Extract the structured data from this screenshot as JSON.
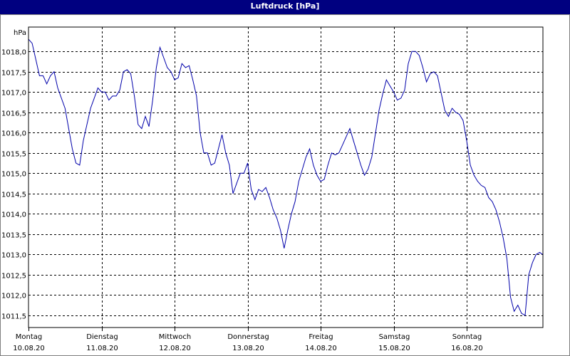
{
  "window": {
    "title": "Luftdruck [hPa]"
  },
  "chart_data": {
    "type": "line",
    "title": "Luftdruck [hPa]",
    "ylabel": "hPa",
    "ylim": [
      1011.2,
      1018.6
    ],
    "yticks": [
      "1018,0",
      "1017,5",
      "1017,0",
      "1016,5",
      "1016,0",
      "1015,5",
      "1015,0",
      "1014,5",
      "1014,0",
      "1013,5",
      "1013,0",
      "1012,5",
      "1012,0",
      "1011,5"
    ],
    "ytick_values": [
      1018.0,
      1017.5,
      1017.0,
      1016.5,
      1016.0,
      1015.5,
      1015.0,
      1014.5,
      1014.0,
      1013.5,
      1013.0,
      1012.5,
      1012.0,
      1011.5
    ],
    "xlim": [
      0,
      7.04
    ],
    "days": [
      {
        "day": "Montag",
        "date": "10.08.20"
      },
      {
        "day": "Dienstag",
        "date": "11.08.20"
      },
      {
        "day": "Mittwoch",
        "date": "12.08.20"
      },
      {
        "day": "Donnerstag",
        "date": "13.08.20"
      },
      {
        "day": "Freitag",
        "date": "14.08.20"
      },
      {
        "day": "Samstag",
        "date": "15.08.20"
      },
      {
        "day": "Sonntag",
        "date": "16.08.20"
      }
    ],
    "grid": true,
    "color": "#0000aa",
    "series": [
      {
        "x": [
          0.0,
          0.05,
          0.1,
          0.15,
          0.2,
          0.25,
          0.3,
          0.35,
          0.4,
          0.5,
          0.55,
          0.6,
          0.65,
          0.7,
          0.75,
          0.85,
          0.9,
          0.95,
          1.0,
          1.05,
          1.1,
          1.15,
          1.2,
          1.25,
          1.3,
          1.35,
          1.4,
          1.45,
          1.5,
          1.55,
          1.6,
          1.65,
          1.7,
          1.75,
          1.8,
          1.9,
          1.95,
          2.0,
          2.05,
          2.1,
          2.15,
          2.2,
          2.25,
          2.3,
          2.35,
          2.4,
          2.45,
          2.5,
          2.55,
          2.6,
          2.65,
          2.7,
          2.75,
          2.8,
          2.9,
          2.95,
          3.0,
          3.05,
          3.1,
          3.15,
          3.2,
          3.25,
          3.3,
          3.35,
          3.4,
          3.45,
          3.5,
          3.55,
          3.6,
          3.65,
          3.7,
          3.8,
          3.85,
          3.9,
          3.95,
          4.0,
          4.05,
          4.1,
          4.15,
          4.2,
          4.25,
          4.3,
          4.4,
          4.45,
          4.5,
          4.55,
          4.6,
          4.65,
          4.7,
          4.8,
          4.85,
          4.9,
          4.95,
          5.0,
          5.05,
          5.1,
          5.15,
          5.2,
          5.25,
          5.3,
          5.35,
          5.4,
          5.45,
          5.5,
          5.55,
          5.6,
          5.7,
          5.75,
          5.8,
          5.85,
          5.9,
          5.95,
          6.0,
          6.05,
          6.1,
          6.15,
          6.2,
          6.25,
          6.3,
          6.35,
          6.4,
          6.45,
          6.5,
          6.55,
          6.6,
          6.65,
          6.7,
          6.75,
          6.8,
          6.85,
          6.9,
          6.95,
          7.0,
          7.04
        ],
        "y": [
          1018.3,
          1018.2,
          1017.8,
          1017.4,
          1017.4,
          1017.2,
          1017.4,
          1017.5,
          1017.1,
          1016.6,
          1016.1,
          1015.6,
          1015.25,
          1015.2,
          1015.8,
          1016.6,
          1016.85,
          1017.1,
          1017.0,
          1017.0,
          1016.8,
          1016.9,
          1016.9,
          1017.05,
          1017.5,
          1017.55,
          1017.45,
          1016.9,
          1016.2,
          1016.1,
          1016.4,
          1016.15,
          1016.8,
          1017.6,
          1018.1,
          1017.6,
          1017.5,
          1017.3,
          1017.35,
          1017.7,
          1017.6,
          1017.65,
          1017.3,
          1016.9,
          1016.0,
          1015.5,
          1015.5,
          1015.2,
          1015.25,
          1015.6,
          1015.95,
          1015.5,
          1015.2,
          1014.5,
          1015.0,
          1015.0,
          1015.25,
          1014.6,
          1014.35,
          1014.6,
          1014.55,
          1014.65,
          1014.4,
          1014.1,
          1013.9,
          1013.6,
          1013.15,
          1013.6,
          1014.0,
          1014.3,
          1014.8,
          1015.4,
          1015.6,
          1015.2,
          1014.95,
          1014.8,
          1014.85,
          1015.2,
          1015.5,
          1015.45,
          1015.5,
          1015.7,
          1016.1,
          1015.8,
          1015.5,
          1015.2,
          1014.95,
          1015.1,
          1015.4,
          1016.55,
          1016.95,
          1017.3,
          1017.15,
          1017.0,
          1016.8,
          1016.85,
          1017.05,
          1017.7,
          1018.0,
          1018.0,
          1017.9,
          1017.6,
          1017.25,
          1017.45,
          1017.5,
          1017.4,
          1016.55,
          1016.4,
          1016.6,
          1016.5,
          1016.45,
          1016.3,
          1015.8,
          1015.2,
          1014.95,
          1014.8,
          1014.7,
          1014.65,
          1014.4,
          1014.3,
          1014.1,
          1013.8,
          1013.4,
          1012.9,
          1011.95,
          1011.6,
          1011.75,
          1011.55,
          1011.5,
          1012.5,
          1012.8,
          1013.0,
          1013.05,
          1013.0
        ]
      }
    ]
  }
}
